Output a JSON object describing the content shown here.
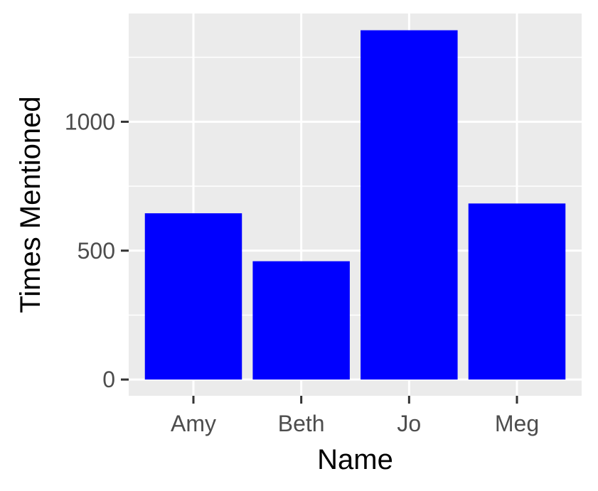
{
  "chart_data": {
    "type": "bar",
    "title": "",
    "xlabel": "Name",
    "ylabel": "Times Mentioned",
    "categories": [
      "Amy",
      "Beth",
      "Jo",
      "Meg"
    ],
    "values": [
      645,
      459,
      1355,
      683
    ],
    "ylim": [
      -63,
      1420
    ],
    "yticks": [
      0,
      500,
      1000
    ],
    "ytick_labels": [
      "0",
      "500",
      "1000"
    ],
    "y_minor_gridlines": [
      250,
      750,
      1250
    ],
    "grid": true,
    "legend": "none",
    "colors": {
      "bar": "#0000ff",
      "panel_background": "#ebebeb",
      "gridline": "#ffffff",
      "tick_text": "#4d4d4d",
      "tick_mark": "#333333",
      "axis_title": "#000000"
    }
  }
}
